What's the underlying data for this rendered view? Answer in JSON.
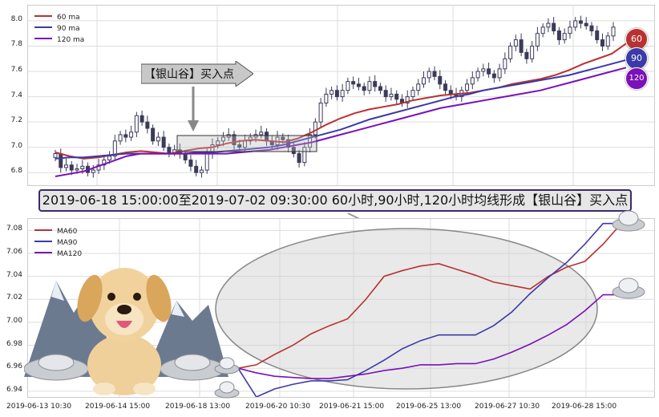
{
  "banner_text": "2019-06-18 15:00:00至2019-07-02 09:30:00 60小时,90小时,120小时均线形成【银山谷】买入点",
  "callout_text": "【银山谷】买入点",
  "badges": {
    "ma60": "60",
    "ma90": "90",
    "ma120": "120"
  },
  "colors": {
    "ma60": "#b83232",
    "ma90": "#3a3aa8",
    "ma120": "#7a10b8",
    "candle": "#3b3b5a",
    "grid": "#dddddd"
  },
  "chart_data": [
    {
      "type": "candlestick",
      "legend_placement": "top-left",
      "legend": [
        "60 ma",
        "90 ma",
        "120 ma"
      ],
      "ylim": [
        6.7,
        8.12
      ],
      "yticks": [
        "6.8",
        "7.0",
        "7.2",
        "7.4",
        "7.6",
        "7.8",
        "8.0"
      ],
      "grid": true,
      "close_prices": [
        6.95,
        6.84,
        6.86,
        6.82,
        6.83,
        6.85,
        6.8,
        6.82,
        6.86,
        6.9,
        6.93,
        7.05,
        7.1,
        7.08,
        7.12,
        7.25,
        7.2,
        7.15,
        7.05,
        7.08,
        7.0,
        6.96,
        6.98,
        6.95,
        6.9,
        6.85,
        6.8,
        6.82,
        6.95,
        7.02,
        7.05,
        7.08,
        7.1,
        7.02,
        7.0,
        7.05,
        7.08,
        7.1,
        7.12,
        7.05,
        7.02,
        7.08,
        7.06,
        7.0,
        6.95,
        6.88,
        7.0,
        7.1,
        7.2,
        7.35,
        7.42,
        7.45,
        7.4,
        7.45,
        7.52,
        7.5,
        7.48,
        7.45,
        7.52,
        7.48,
        7.45,
        7.4,
        7.42,
        7.38,
        7.35,
        7.4,
        7.45,
        7.5,
        7.55,
        7.6,
        7.56,
        7.5,
        7.45,
        7.42,
        7.4,
        7.45,
        7.5,
        7.55,
        7.6,
        7.62,
        7.58,
        7.55,
        7.62,
        7.7,
        7.8,
        7.85,
        7.75,
        7.7,
        7.8,
        7.9,
        7.95,
        7.98,
        7.92,
        7.85,
        7.9,
        7.95,
        8.0,
        7.98,
        7.96,
        7.92,
        7.85,
        7.8,
        7.88,
        7.95
      ],
      "series": [
        {
          "name": "60 ma",
          "values": [
            6.96,
            6.93,
            6.91,
            6.92,
            6.94,
            6.96,
            6.97,
            6.96,
            6.95,
            6.97,
            6.99,
            7.0,
            7.03,
            7.05,
            7.06,
            7.05,
            7.04,
            7.07,
            7.12,
            7.18,
            7.23,
            7.27,
            7.3,
            7.32,
            7.34,
            7.37,
            7.39,
            7.41,
            7.42,
            7.43,
            7.45,
            7.47,
            7.5,
            7.52,
            7.54,
            7.57,
            7.61,
            7.66,
            7.7,
            7.74,
            7.82
          ]
        },
        {
          "name": "90 ma",
          "values": [
            6.91,
            6.92,
            6.92,
            6.93,
            6.94,
            6.95,
            6.95,
            6.95,
            6.95,
            6.95,
            6.96,
            6.96,
            6.97,
            6.98,
            6.99,
            7.0,
            7.02,
            7.05,
            7.08,
            7.11,
            7.14,
            7.18,
            7.22,
            7.25,
            7.28,
            7.31,
            7.34,
            7.37,
            7.4,
            7.42,
            7.45,
            7.47,
            7.49,
            7.51,
            7.53,
            7.55,
            7.57,
            7.6,
            7.63,
            7.66,
            7.69
          ]
        },
        {
          "name": "120 ma",
          "values": [
            6.77,
            6.79,
            6.81,
            6.85,
            6.89,
            6.93,
            6.95,
            6.95,
            6.95,
            6.95,
            6.95,
            6.95,
            6.95,
            6.96,
            6.97,
            6.98,
            7.0,
            7.02,
            7.04,
            7.07,
            7.1,
            7.13,
            7.16,
            7.19,
            7.22,
            7.25,
            7.28,
            7.31,
            7.33,
            7.35,
            7.37,
            7.39,
            7.41,
            7.43,
            7.45,
            7.48,
            7.51,
            7.54,
            7.57,
            7.6,
            7.63
          ]
        }
      ]
    },
    {
      "type": "line",
      "legend_placement": "top-left",
      "ylim": [
        6.935,
        7.09
      ],
      "yticks": [
        "6.94",
        "6.96",
        "6.98",
        "7.00",
        "7.02",
        "7.04",
        "7.06",
        "7.08"
      ],
      "xticks": [
        "2019-06-13 10:30",
        "2019-06-14 15:00",
        "2019-06-18 13:00",
        "2019-06-20 10:30",
        "2019-06-21 15:00",
        "2019-06-25 13:00",
        "2019-06-27 10:30",
        "2019-06-28 15:00"
      ],
      "grid": true,
      "series": [
        {
          "name": "MA60",
          "values": [
            6.96,
            6.963,
            6.972,
            6.98,
            6.99,
            6.997,
            7.003,
            7.02,
            7.04,
            7.045,
            7.049,
            7.051,
            7.046,
            7.041,
            7.035,
            7.032,
            7.029,
            7.04,
            7.048,
            7.053,
            7.068,
            7.086
          ]
        },
        {
          "name": "MA90",
          "values": [
            6.96,
            6.935,
            6.942,
            6.946,
            6.949,
            6.949,
            6.95,
            6.958,
            6.967,
            6.977,
            6.984,
            6.989,
            6.989,
            6.989,
            6.997,
            7.009,
            7.025,
            7.039,
            7.052,
            7.068,
            7.086,
            7.086
          ]
        },
        {
          "name": "MA120",
          "values": [
            6.96,
            6.956,
            6.953,
            6.952,
            6.951,
            6.951,
            6.953,
            6.955,
            6.958,
            6.96,
            6.963,
            6.963,
            6.964,
            6.964,
            6.968,
            6.974,
            6.981,
            6.989,
            6.998,
            7.01,
            7.024,
            7.024
          ]
        }
      ]
    }
  ]
}
